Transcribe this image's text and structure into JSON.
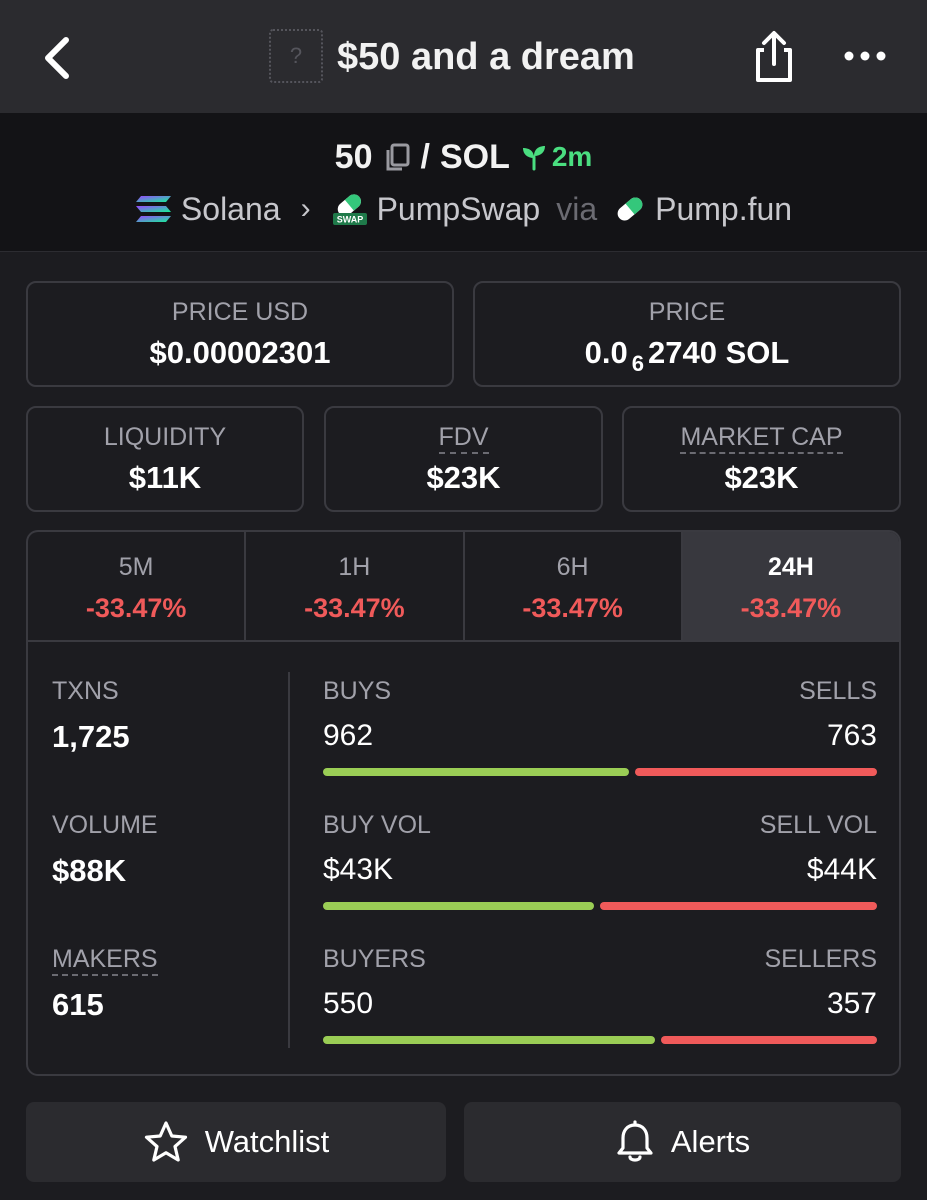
{
  "header": {
    "token_placeholder": "?",
    "title": "$50 and a dream"
  },
  "pair": {
    "base": "50",
    "separator": "/",
    "quote": "SOL",
    "age": "2m",
    "chain": "Solana",
    "dex": "PumpSwap",
    "via": "via",
    "launchpad": "Pump.fun",
    "dex_badge": "SWAP"
  },
  "prices": {
    "usd_label": "PRICE USD",
    "usd_value": "$0.00002301",
    "native_label": "PRICE",
    "native_prefix": "0.0",
    "native_zeros": "6",
    "native_suffix": "2740 SOL"
  },
  "metrics": [
    {
      "label": "LIQUIDITY",
      "value": "$11K"
    },
    {
      "label": "FDV",
      "value": "$23K"
    },
    {
      "label": "MARKET CAP",
      "value": "$23K"
    }
  ],
  "timeframes": [
    {
      "label": "5M",
      "change": "-33.47%"
    },
    {
      "label": "1H",
      "change": "-33.47%"
    },
    {
      "label": "6H",
      "change": "-33.47%"
    },
    {
      "label": "24H",
      "change": "-33.47%",
      "active": true
    }
  ],
  "stats": {
    "txns": {
      "label": "TXNS",
      "value": "1,725"
    },
    "volume": {
      "label": "VOLUME",
      "value": "$88K"
    },
    "makers": {
      "label": "MAKERS",
      "value": "615"
    },
    "buys_sells": {
      "left_label": "BUYS",
      "left_value": "962",
      "right_label": "SELLS",
      "right_value": "763",
      "buy_fraction": 0.558
    },
    "buy_sell_vol": {
      "left_label": "BUY VOL",
      "left_value": "$43K",
      "right_label": "SELL VOL",
      "right_value": "$44K",
      "buy_fraction": 0.494
    },
    "buyers_sellers": {
      "left_label": "BUYERS",
      "left_value": "550",
      "right_label": "SELLERS",
      "right_value": "357",
      "buy_fraction": 0.606
    }
  },
  "actions": {
    "watchlist": "Watchlist",
    "alerts": "Alerts"
  },
  "colors": {
    "positive": "#9acd55",
    "negative": "#f05a5a",
    "age_green": "#4ade80"
  }
}
